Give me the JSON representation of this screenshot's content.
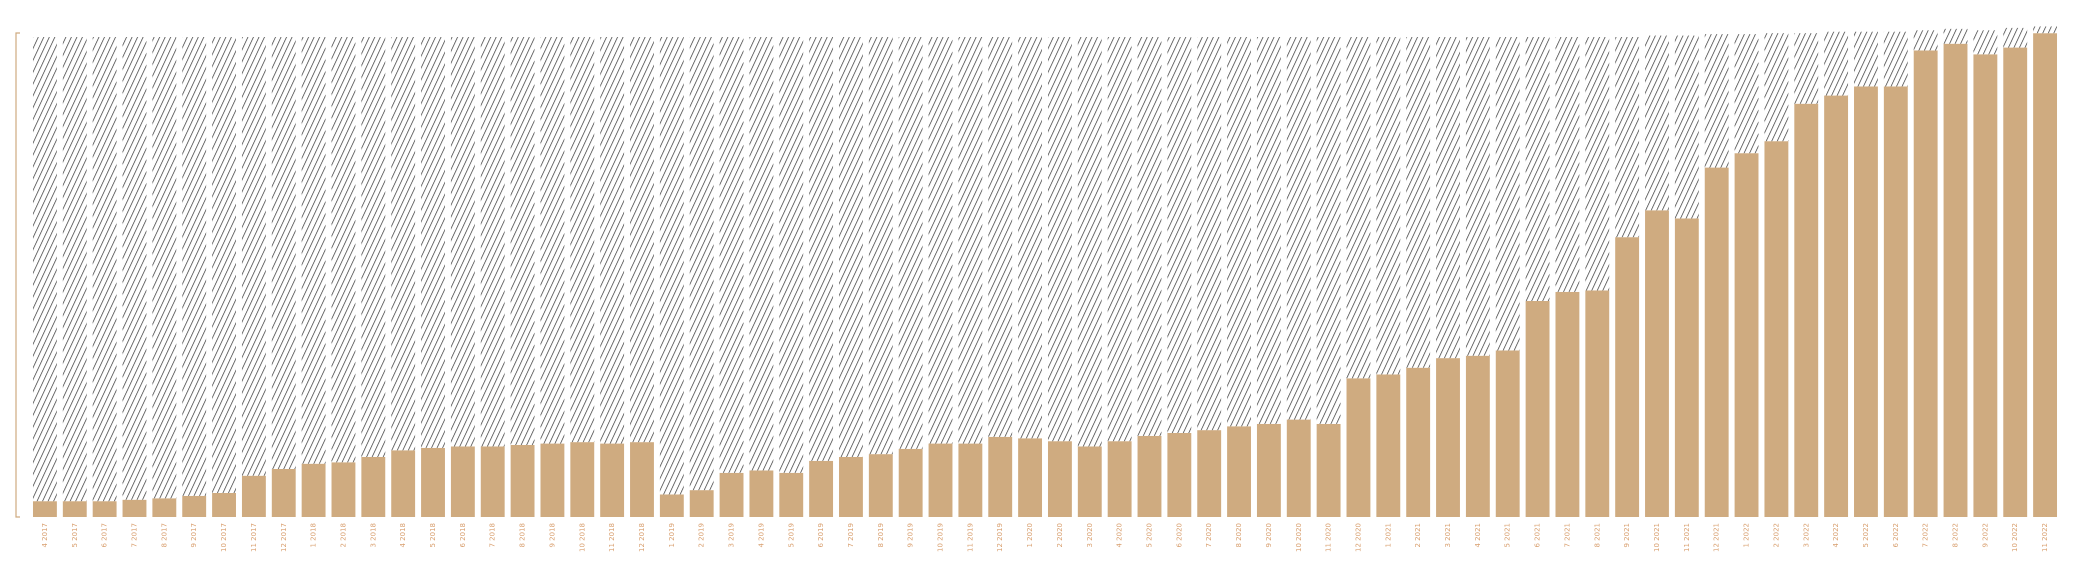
{
  "chart_data": {
    "type": "stacked_bar",
    "categories": [
      "4 2017",
      "5 2017",
      "6 2017",
      "7 2017",
      "8 2017",
      "9 2017",
      "10 2017",
      "11 2017",
      "12 2017",
      "1 2018",
      "2 2018",
      "3 2018",
      "4 2018",
      "5 2018",
      "6 2018",
      "7 2018",
      "8 2018",
      "9 2018",
      "10 2018",
      "11 2018",
      "12 2018",
      "1 2019",
      "2 2019",
      "3 2019",
      "4 2019",
      "5 2019",
      "6 2019",
      "7 2019",
      "8 2019",
      "9 2019",
      "10 2019",
      "11 2019",
      "12 2019",
      "1 2020",
      "2 2020",
      "3 2020",
      "4 2020",
      "5 2020",
      "6 2020",
      "7 2020",
      "8 2020",
      "9 2020",
      "10 2020",
      "11 2020",
      "12 2020",
      "1 2021",
      "2 2021",
      "3 2021",
      "4 2021",
      "5 2021",
      "6 2021",
      "7 2021",
      "8 2021",
      "9 2021",
      "10 2021",
      "11 2021",
      "12 2021",
      "1 2022",
      "2 2022",
      "3 2022",
      "4 2022",
      "5 2022",
      "6 2022",
      "7 2022",
      "8 2022",
      "9 2022",
      "10 2022",
      "11 2022"
    ],
    "series": [
      {
        "color": "#cfab80",
        "values": [
          3.3,
          3.3,
          3.3,
          3.6,
          3.9,
          4.4,
          5.0,
          8.6,
          10.0,
          11.1,
          11.4,
          12.5,
          13.9,
          14.4,
          14.7,
          14.7,
          15.0,
          15.3,
          15.6,
          15.3,
          15.6,
          4.7,
          5.6,
          9.2,
          9.7,
          9.2,
          11.7,
          12.5,
          13.1,
          14.2,
          15.3,
          15.3,
          16.7,
          16.4,
          15.8,
          14.7,
          15.8,
          16.9,
          17.5,
          18.1,
          18.9,
          19.4,
          20.3,
          19.4,
          28.9,
          29.7,
          31.1,
          33.1,
          33.6,
          34.7,
          45.0,
          46.9,
          47.2,
          58.3,
          63.9,
          62.2,
          72.8,
          75.8,
          78.3,
          86.1,
          87.8,
          89.7,
          89.7,
          97.2,
          98.6,
          96.4,
          97.8,
          100.8
        ]
      },
      {
        "color": "#333333",
        "pattern": "hatch",
        "values": [
          96.7,
          96.7,
          96.7,
          96.4,
          96.1,
          95.6,
          95.0,
          91.4,
          90.0,
          88.9,
          88.6,
          87.5,
          86.1,
          85.6,
          85.3,
          85.3,
          85.0,
          84.7,
          84.4,
          84.7,
          84.4,
          95.3,
          94.4,
          90.8,
          90.3,
          90.8,
          88.3,
          87.5,
          86.9,
          85.8,
          84.7,
          84.7,
          83.3,
          83.6,
          84.2,
          85.3,
          84.2,
          83.1,
          82.5,
          81.9,
          81.1,
          80.6,
          79.7,
          80.6,
          71.1,
          70.3,
          68.9,
          66.9,
          66.4,
          65.3,
          55.0,
          53.1,
          52.8,
          41.7,
          36.4,
          38.1,
          27.8,
          24.8,
          22.5,
          14.7,
          13.3,
          11.4,
          11.4,
          4.2,
          3.1,
          5.0,
          4.1,
          1.4
        ]
      }
    ],
    "ylim": [
      0,
      102.5
    ],
    "label_color": "#d9a070"
  }
}
